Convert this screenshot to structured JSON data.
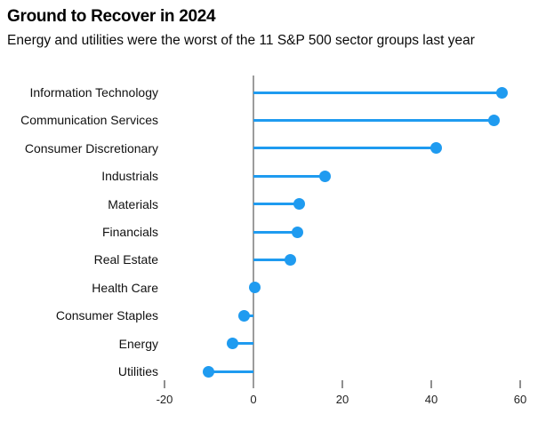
{
  "header": {
    "title": "Ground to Recover in 2024",
    "subtitle": "Energy and utilities were the worst of the 11 S&P 500 sector groups last year"
  },
  "colors": {
    "accent_blue": "#1f9bf0",
    "axis_gray": "#9c9c9c",
    "tick_gray": "#8f8f8f",
    "text_black": "#000000"
  },
  "chart_data": {
    "type": "bar",
    "variant": "lollipop",
    "orientation": "horizontal",
    "title": "Ground to Recover in 2024",
    "subtitle": "Energy and utilities were the worst of the 11 S&P 500 sector groups last year",
    "xlabel": "",
    "ylabel": "",
    "unit": "percent",
    "categories": [
      "Information Technology",
      "Communication Services",
      "Consumer Discretionary",
      "Industrials",
      "Materials",
      "Financials",
      "Real Estate",
      "Health Care",
      "Consumer Staples",
      "Energy",
      "Utilities"
    ],
    "values": [
      55.9,
      54.0,
      41.0,
      16.0,
      10.2,
      9.9,
      8.3,
      0.3,
      -2.2,
      -4.8,
      -10.2
    ],
    "xlim": [
      -25,
      67
    ],
    "x_ticks": [
      -20,
      0,
      20,
      40,
      60
    ],
    "x_tick_labels": [
      "-20",
      "0",
      "20",
      "40",
      "60"
    ],
    "grid": false,
    "legend": false
  }
}
